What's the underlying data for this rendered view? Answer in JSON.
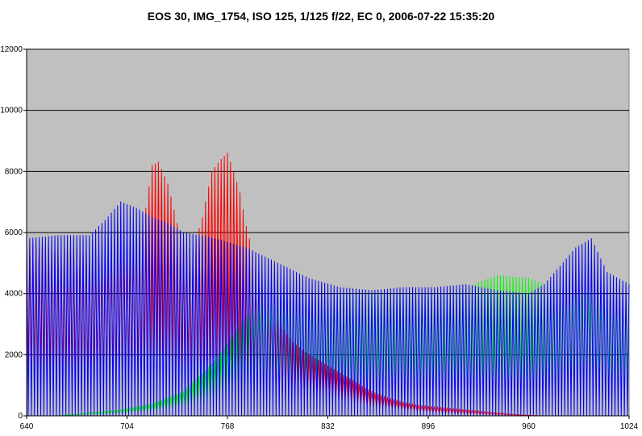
{
  "chart_data": {
    "type": "line",
    "title": "EOS 30, IMG_1754, ISO 125, 1/125 f/22, EC 0, 2006-07-22 15:35:20",
    "xlabel": "",
    "ylabel": "",
    "xlim": [
      640,
      1024
    ],
    "ylim": [
      0,
      12000
    ],
    "x_ticks": [
      "640",
      "704",
      "768",
      "832",
      "896",
      "960",
      "1024"
    ],
    "y_ticks": [
      "0",
      "2000",
      "4000",
      "6000",
      "8000",
      "10000",
      "12000"
    ],
    "grid": "horizontal",
    "legend": "none",
    "plot_background": "#c0c0c0",
    "series": [
      {
        "color": "#ff0000",
        "x": [
          640,
          650,
          660,
          670,
          680,
          690,
          700,
          710,
          716,
          720,
          724,
          730,
          736,
          740,
          746,
          752,
          758,
          764,
          768,
          772,
          776,
          780,
          786,
          792,
          800,
          810,
          820,
          830,
          840,
          850,
          860,
          870,
          880,
          890,
          900,
          910,
          920,
          930,
          940,
          950,
          960,
          970
        ],
        "peak": [
          5600,
          5600,
          5400,
          5500,
          5400,
          5100,
          5300,
          5600,
          6800,
          8200,
          8300,
          7600,
          6300,
          5700,
          5400,
          6500,
          8000,
          8400,
          8600,
          8000,
          7300,
          6200,
          5000,
          4000,
          3100,
          2400,
          2000,
          1700,
          1400,
          1100,
          800,
          600,
          450,
          350,
          300,
          250,
          200,
          150,
          100,
          50,
          20,
          0
        ],
        "trough": [
          1400,
          1500,
          1300,
          1300,
          1250,
          1200,
          1300,
          1400,
          1700,
          2000,
          2100,
          2000,
          1700,
          1600,
          1500,
          1700,
          1900,
          2000,
          2000,
          1800,
          1400,
          1100,
          900,
          800,
          750,
          700,
          650,
          600,
          500,
          400,
          300,
          250,
          200,
          150,
          100,
          80,
          60,
          40,
          20,
          10,
          0,
          0
        ]
      },
      {
        "color": "#00ff00",
        "x": [
          640,
          660,
          680,
          700,
          720,
          740,
          760,
          770,
          780,
          790,
          800,
          820,
          840,
          860,
          880,
          900,
          920,
          940,
          960,
          980,
          1000,
          1024
        ],
        "peak": [
          0,
          0,
          100,
          200,
          400,
          800,
          1800,
          2500,
          3200,
          3700,
          4000,
          4000,
          4000,
          4100,
          4000,
          4000,
          4200,
          4600,
          4500,
          4100,
          4000,
          3800
        ],
        "trough": [
          0,
          0,
          40,
          80,
          150,
          300,
          500,
          700,
          900,
          1000,
          1100,
          1100,
          1100,
          1150,
          1150,
          1150,
          1200,
          1250,
          1250,
          1200,
          1200,
          1100
        ]
      },
      {
        "color": "#0000ff",
        "x": [
          640,
          660,
          680,
          690,
          700,
          710,
          720,
          730,
          740,
          760,
          780,
          800,
          820,
          840,
          860,
          880,
          900,
          920,
          940,
          960,
          970,
          990,
          1000,
          1010,
          1024
        ],
        "peak": [
          5800,
          5900,
          5900,
          6400,
          7000,
          6800,
          6500,
          6300,
          6000,
          5800,
          5500,
          5000,
          4500,
          4200,
          4100,
          4200,
          4200,
          4300,
          4100,
          4000,
          4300,
          5500,
          5800,
          4700,
          4300
        ],
        "trough": [
          0,
          0,
          0,
          0,
          0,
          0,
          0,
          0,
          0,
          0,
          0,
          0,
          0,
          0,
          0,
          0,
          0,
          0,
          0,
          0,
          0,
          0,
          0,
          0,
          0
        ]
      }
    ]
  }
}
